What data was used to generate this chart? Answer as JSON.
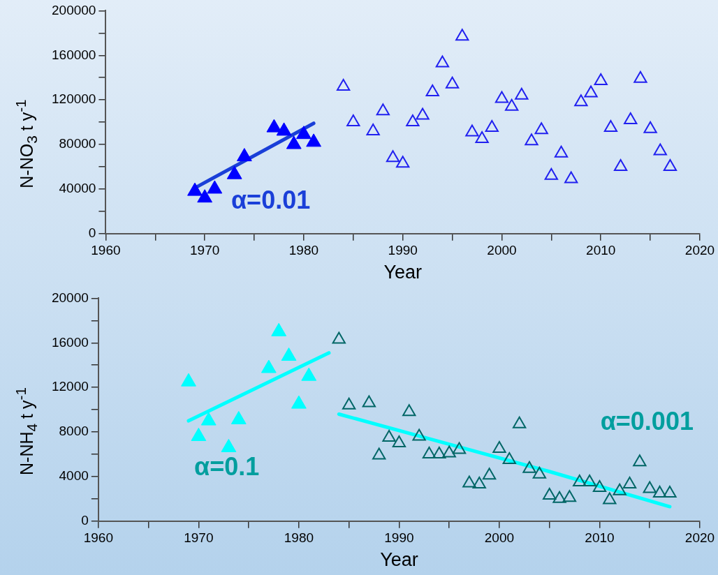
{
  "chart_data": [
    {
      "type": "scatter",
      "xlabel": "Year",
      "ylabel": "N-NO$_{3}$ t y$^{-1}$",
      "xlim": [
        1960,
        2020
      ],
      "xticks": [
        1960,
        {
          "value": 1965,
          "label": null
        },
        1970,
        {
          "value": 1975,
          "label": null
        },
        1980,
        {
          "value": 1985,
          "label": null
        },
        1990,
        {
          "value": 1995,
          "label": null
        },
        2000,
        {
          "value": 2005,
          "label": null
        },
        2010,
        {
          "value": 2015,
          "label": null
        },
        2020
      ],
      "ylim": [
        0,
        200000
      ],
      "yticks": [
        0,
        {
          "value": 20000,
          "label": null
        },
        40000,
        {
          "value": 60000,
          "label": null
        },
        80000,
        {
          "value": 100000,
          "label": null
        },
        120000,
        {
          "value": 140000,
          "label": null
        },
        160000,
        {
          "value": 180000,
          "label": null
        },
        200000
      ],
      "series": [
        {
          "color": "#0000ff",
          "marker": "triangle",
          "x": [
            1969,
            1970,
            1971,
            1973,
            1974,
            1977,
            1978,
            1979,
            1980,
            1981
          ],
          "values": [
            38000,
            32000,
            40000,
            53000,
            69000,
            95000,
            92000,
            80000,
            89000,
            82000
          ]
        },
        {
          "color": "#2020f0",
          "marker": "triangle",
          "x": [
            1984,
            1985,
            1987,
            1988,
            1989,
            1990,
            1991,
            1992,
            1993,
            1994,
            1995,
            1996,
            1997,
            1998,
            1999,
            2000,
            2001,
            2002,
            2003,
            2004,
            2005,
            2006,
            2007,
            2008,
            2009,
            2010,
            2011,
            2012,
            2013,
            2014,
            2015,
            2016,
            2017
          ],
          "values": [
            132000,
            100000,
            92000,
            110000,
            68000,
            63000,
            100000,
            106000,
            127000,
            153000,
            134000,
            177000,
            91000,
            85000,
            95000,
            121000,
            114000,
            124000,
            83000,
            93000,
            52000,
            72000,
            49000,
            118000,
            126000,
            137000,
            95000,
            60000,
            102000,
            139000,
            94000,
            74000,
            60000
          ]
        },
        {
          "type": "line",
          "color": "#1a3fd8",
          "x": [
            1969,
            1981
          ],
          "values": [
            41000,
            99000
          ]
        }
      ],
      "annotations": [
        "α=0.01"
      ]
    },
    {
      "type": "scatter",
      "xlabel": "Year",
      "ylabel": "N-NH$_{4}$ t y$^{-1}$",
      "xlim": [
        1960,
        2020
      ],
      "xticks": [
        1960,
        {
          "value": 1965,
          "label": null
        },
        1970,
        {
          "value": 1975,
          "label": null
        },
        1980,
        {
          "value": 1985,
          "label": null
        },
        1990,
        {
          "value": 1995,
          "label": null
        },
        2000,
        {
          "value": 2005,
          "label": null
        },
        2010,
        {
          "value": 2015,
          "label": null
        },
        2020
      ],
      "ylim": [
        0,
        20000
      ],
      "yticks": [
        0,
        {
          "value": 2000,
          "label": null
        },
        4000,
        {
          "value": 6000,
          "label": null
        },
        8000,
        {
          "value": 10000,
          "label": null
        },
        12000,
        {
          "value": 14000,
          "label": null
        },
        16000,
        {
          "value": 18000,
          "label": null
        },
        20000
      ],
      "series": [
        {
          "color": "#00ffff",
          "marker": "triangle",
          "x": [
            1969,
            1970,
            1971,
            1973,
            1974,
            1977,
            1978,
            1979,
            1980,
            1981
          ],
          "values": [
            12500,
            7600,
            9000,
            6600,
            9100,
            13700,
            17000,
            14800,
            10500,
            13000
          ]
        },
        {
          "color": "#006666",
          "marker": "triangle",
          "x": [
            1984,
            1985,
            1987,
            1988,
            1989,
            1990,
            1991,
            1992,
            1993,
            1994,
            1995,
            1996,
            1997,
            1998,
            1999,
            2000,
            2001,
            2002,
            2003,
            2004,
            2005,
            2006,
            2007,
            2008,
            2009,
            2010,
            2011,
            2012,
            2013,
            2014,
            2015,
            2016,
            2017
          ],
          "values": [
            16300,
            10400,
            10600,
            5900,
            7500,
            7000,
            9800,
            7600,
            6000,
            6000,
            6100,
            6400,
            3400,
            3300,
            4100,
            6500,
            5500,
            8700,
            4700,
            4200,
            2300,
            2000,
            2100,
            3500,
            3500,
            3000,
            1900,
            2700,
            3300,
            5300,
            2900,
            2500,
            2500
          ]
        },
        {
          "type": "line",
          "color": "#00ffff",
          "x": [
            1969,
            1983
          ],
          "values": [
            9000,
            15100
          ]
        },
        {
          "type": "line",
          "color": "#00ffff",
          "x": [
            1984,
            1995,
            2005,
            2017
          ],
          "values": [
            9600,
            6900,
            4450,
            1300
          ]
        }
      ],
      "annotations": [
        "α=0.1",
        "α=0.001"
      ]
    }
  ]
}
